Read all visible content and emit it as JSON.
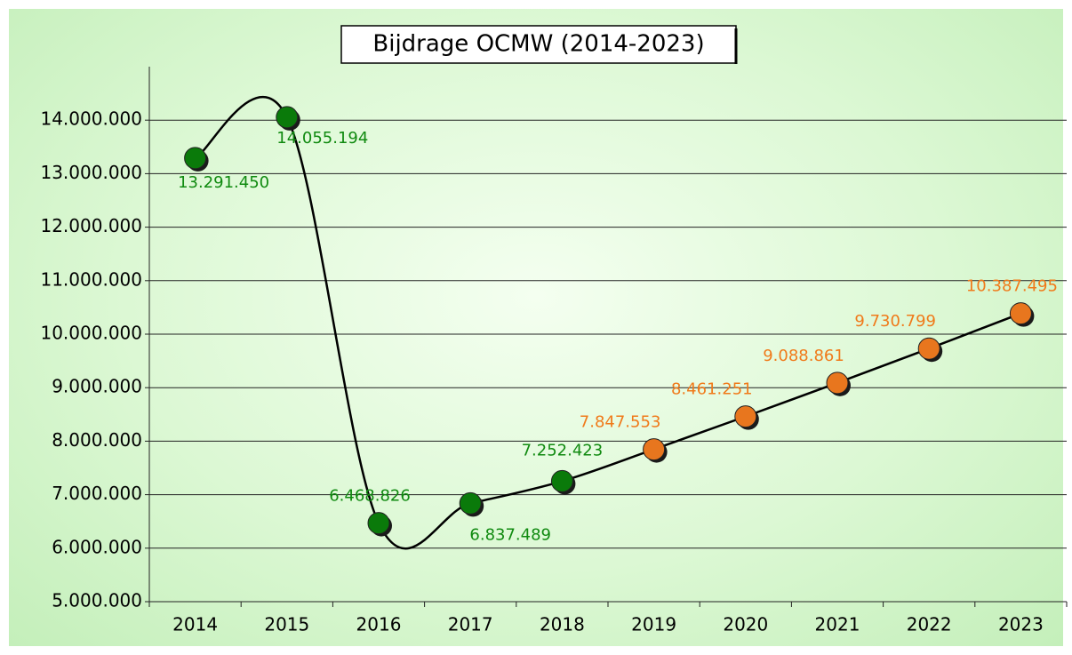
{
  "chart_data": {
    "type": "line",
    "title": "Bijdrage OCMW (2014-2023)",
    "categories": [
      "2014",
      "2015",
      "2016",
      "2017",
      "2018",
      "2019",
      "2020",
      "2021",
      "2022",
      "2023"
    ],
    "values": [
      13291450,
      14055194,
      6468826,
      6837489,
      7252423,
      7847553,
      8461251,
      9088861,
      9730799,
      10387495
    ],
    "value_labels": [
      "13.291.450",
      "14.055.194",
      "6.468.826",
      "6.837.489",
      "7.252.423",
      "7.847.553",
      "8.461.251",
      "9.088.861",
      "9.730.799",
      "10.387.495"
    ],
    "marker_colors": [
      "#0a7a0a",
      "#0a7a0a",
      "#0a7a0a",
      "#0a7a0a",
      "#0a7a0a",
      "#e8761e",
      "#e8761e",
      "#e8761e",
      "#e8761e",
      "#e8761e"
    ],
    "label_colors": [
      "#108a10",
      "#108a10",
      "#108a10",
      "#108a10",
      "#108a10",
      "#f07a1a",
      "#f07a1a",
      "#f07a1a",
      "#f07a1a",
      "#f07a1a"
    ],
    "line_color": "#000000",
    "smooth": true,
    "ylim": [
      5000000,
      15000000
    ],
    "yticks": [
      {
        "value": 5000000,
        "label": "5.000.000"
      },
      {
        "value": 6000000,
        "label": "6.000.000"
      },
      {
        "value": 7000000,
        "label": "7.000.000"
      },
      {
        "value": 8000000,
        "label": "8.000.000"
      },
      {
        "value": 9000000,
        "label": "9.000.000"
      },
      {
        "value": 10000000,
        "label": "10.000.000"
      },
      {
        "value": 11000000,
        "label": "11.000.000"
      },
      {
        "value": 12000000,
        "label": "12.000.000"
      },
      {
        "value": 13000000,
        "label": "13.000.000"
      },
      {
        "value": 14000000,
        "label": "14.000.000"
      }
    ],
    "grid": true
  }
}
